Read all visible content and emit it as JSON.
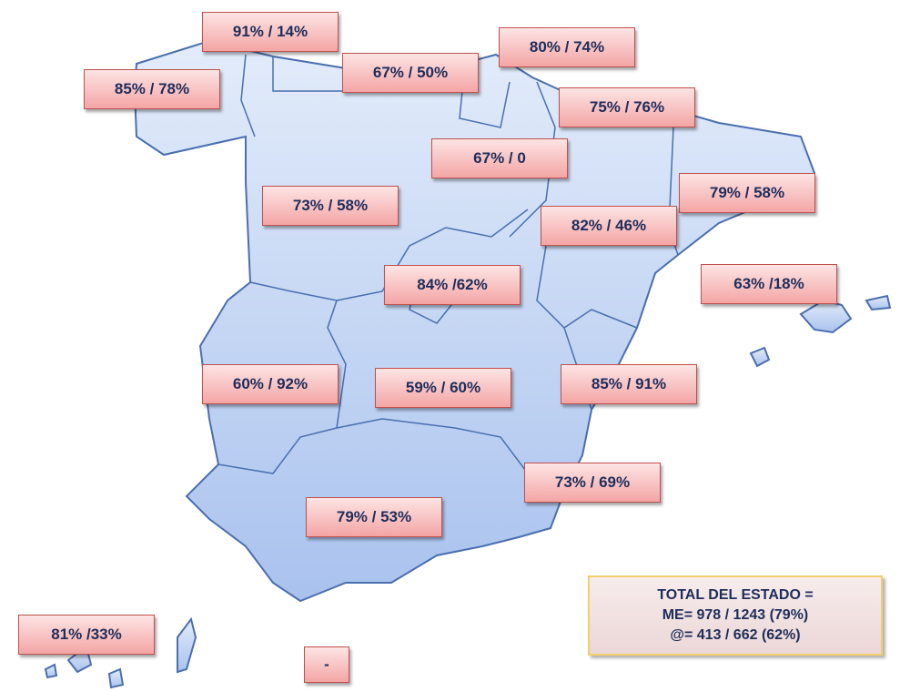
{
  "regions": [
    {
      "label": "91% / 14%"
    },
    {
      "label": "80% / 74%"
    },
    {
      "label": "85% / 78%"
    },
    {
      "label": "67% / 50%"
    },
    {
      "label": "75% / 76%"
    },
    {
      "label": "67% / 0"
    },
    {
      "label": "73% / 58%"
    },
    {
      "label": "79% / 58%"
    },
    {
      "label": "82% / 46%"
    },
    {
      "label": "63% /18%"
    },
    {
      "label": "84% /62%"
    },
    {
      "label": "60% / 92%"
    },
    {
      "label": "59% / 60%"
    },
    {
      "label": "85% / 91%"
    },
    {
      "label": "73% / 69%"
    },
    {
      "label": "79% / 53%"
    },
    {
      "label": "81% /33%"
    },
    {
      "label": "-"
    }
  ],
  "total": {
    "lines": [
      "TOTAL  DEL  ESTADO =",
      "ME= 978 / 1243 (79%)",
      "@= 413 / 662 (62%)"
    ]
  }
}
